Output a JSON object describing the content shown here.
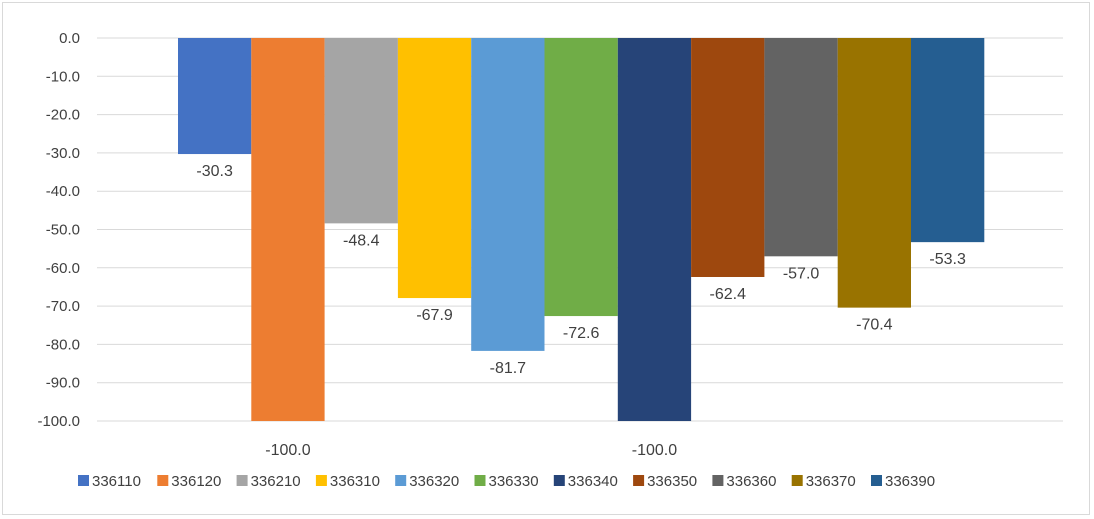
{
  "chart_data": {
    "type": "bar",
    "title": "",
    "xlabel": "",
    "ylabel": "",
    "ylim": [
      -100,
      0
    ],
    "yticks": [
      "0.0",
      "-10.0",
      "-20.0",
      "-30.0",
      "-40.0",
      "-50.0",
      "-60.0",
      "-70.0",
      "-80.0",
      "-90.0",
      "-100.0"
    ],
    "grid": true,
    "legend_position": "bottom",
    "series": [
      {
        "name": "336110",
        "value": -30.3,
        "label": "-30.3",
        "color": "#4472C4"
      },
      {
        "name": "336120",
        "value": -100.0,
        "label": "-100.0",
        "color": "#ED7D31"
      },
      {
        "name": "336210",
        "value": -48.4,
        "label": "-48.4",
        "color": "#A5A5A5"
      },
      {
        "name": "336310",
        "value": -67.9,
        "label": "-67.9",
        "color": "#FFC000"
      },
      {
        "name": "336320",
        "value": -81.7,
        "label": "-81.7",
        "color": "#5B9BD5"
      },
      {
        "name": "336330",
        "value": -72.6,
        "label": "-72.6",
        "color": "#70AD47"
      },
      {
        "name": "336340",
        "value": -100.0,
        "label": "-100.0",
        "color": "#264478"
      },
      {
        "name": "336350",
        "value": -62.4,
        "label": "-62.4",
        "color": "#9E480E"
      },
      {
        "name": "336360",
        "value": -57.0,
        "label": "-57.0",
        "color": "#636363"
      },
      {
        "name": "336370",
        "value": -70.4,
        "label": "-70.4",
        "color": "#997300"
      },
      {
        "name": "336390",
        "value": -53.3,
        "label": "-53.3",
        "color": "#255E91"
      }
    ]
  }
}
